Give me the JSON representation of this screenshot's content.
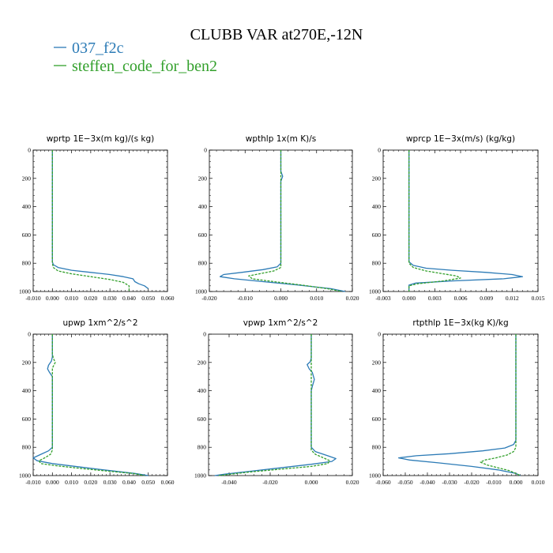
{
  "title": "CLUBB VAR at270E,-12N",
  "legend": [
    {
      "label": "037_f2c",
      "color": "#2c7bb6"
    },
    {
      "label": "steffen_code_for_ben2",
      "color": "#33a02c"
    }
  ],
  "chart_data": [
    {
      "type": "line",
      "title": "wprtp   1E−3x(m kg)/(s kg)",
      "xlim": [
        -0.01,
        0.06
      ],
      "xticks": [
        "-0.010",
        "0.000",
        "0.010",
        "0.020",
        "0.030",
        "0.040",
        "0.050",
        "0.060"
      ],
      "xtick_values": [
        -0.01,
        0.0,
        0.01,
        0.02,
        0.03,
        0.04,
        0.05,
        0.06
      ],
      "ylim": [
        0,
        1000
      ],
      "yticks": [
        "0",
        "200",
        "400",
        "600",
        "800",
        "1000"
      ],
      "y_inverted": true,
      "series": [
        {
          "name": "037_f2c",
          "color": "#2c7bb6",
          "dashed": false,
          "x": [
            0.0,
            0.0,
            0.0,
            0.0005,
            0.003,
            0.01,
            0.02,
            0.03,
            0.037,
            0.042,
            0.043,
            0.045,
            0.048,
            0.05
          ],
          "y": [
            0,
            400,
            790,
            810,
            830,
            850,
            865,
            880,
            895,
            910,
            930,
            945,
            960,
            980
          ]
        },
        {
          "name": "steffen_code_for_ben2",
          "color": "#33a02c",
          "dashed": true,
          "x": [
            0.0,
            0.0,
            0.0,
            0.0005,
            0.003,
            0.01,
            0.02,
            0.03,
            0.037,
            0.04,
            0.04
          ],
          "y": [
            0,
            400,
            800,
            830,
            855,
            875,
            895,
            915,
            935,
            960,
            1000
          ]
        }
      ]
    },
    {
      "type": "line",
      "title": "wpthlp   1x(m K)/s",
      "xlim": [
        -0.02,
        0.02
      ],
      "xticks": [
        "-0.020",
        "-0.010",
        "0.000",
        "0.010",
        "0.020"
      ],
      "xtick_values": [
        -0.02,
        -0.01,
        0.0,
        0.01,
        0.02
      ],
      "ylim": [
        0,
        1000
      ],
      "yticks": [
        "0",
        "200",
        "400",
        "600",
        "800",
        "1000"
      ],
      "y_inverted": true,
      "series": [
        {
          "name": "037_f2c",
          "color": "#2c7bb6",
          "dashed": false,
          "x": [
            0.0,
            0.0,
            0.0005,
            0.0,
            0.0,
            0.0,
            -0.001,
            -0.005,
            -0.011,
            -0.016,
            -0.017,
            -0.013,
            -0.005,
            0.005,
            0.014,
            0.018
          ],
          "y": [
            0,
            150,
            185,
            220,
            400,
            800,
            825,
            845,
            865,
            880,
            895,
            910,
            930,
            955,
            980,
            1000
          ]
        },
        {
          "name": "steffen_code_for_ben2",
          "color": "#33a02c",
          "dashed": true,
          "x": [
            0.0,
            0.0,
            0.0,
            0.0,
            0.0,
            -0.002,
            -0.006,
            -0.009,
            -0.008,
            -0.002,
            0.006,
            0.013,
            0.017
          ],
          "y": [
            0,
            200,
            400,
            800,
            830,
            855,
            875,
            890,
            910,
            930,
            955,
            980,
            1000
          ]
        }
      ]
    },
    {
      "type": "line",
      "title": "wprcp   1E−3x(m/s) (kg/kg)",
      "xlim": [
        -0.003,
        0.015
      ],
      "xticks": [
        "-0.003",
        "0.000",
        "0.003",
        "0.006",
        "0.009",
        "0.012",
        "0.015"
      ],
      "xtick_values": [
        -0.003,
        0.0,
        0.003,
        0.006,
        0.009,
        0.012,
        0.015
      ],
      "ylim": [
        0,
        1000
      ],
      "yticks": [
        "0",
        "200",
        "400",
        "600",
        "800",
        "1000"
      ],
      "y_inverted": true,
      "series": [
        {
          "name": "037_f2c",
          "color": "#2c7bb6",
          "dashed": false,
          "x": [
            0.0,
            0.0,
            0.0,
            0.0005,
            0.002,
            0.005,
            0.009,
            0.012,
            0.0132,
            0.011,
            0.005,
            0.0008,
            0.0,
            0.0
          ],
          "y": [
            0,
            400,
            790,
            815,
            835,
            850,
            865,
            880,
            895,
            910,
            925,
            940,
            955,
            1000
          ]
        },
        {
          "name": "steffen_code_for_ben2",
          "color": "#33a02c",
          "dashed": true,
          "x": [
            0.0,
            0.0,
            0.0,
            0.0005,
            0.002,
            0.004,
            0.0055,
            0.006,
            0.004,
            0.001,
            0.0,
            0.0
          ],
          "y": [
            0,
            400,
            800,
            830,
            855,
            875,
            890,
            905,
            925,
            945,
            960,
            1000
          ]
        }
      ]
    },
    {
      "type": "line",
      "title": "upwp   1xm^2/s^2",
      "xlim": [
        -0.01,
        0.06
      ],
      "xticks": [
        "-0.010",
        "0.000",
        "0.010",
        "0.020",
        "0.030",
        "0.040",
        "0.050",
        "0.060"
      ],
      "xtick_values": [
        -0.01,
        0.0,
        0.01,
        0.02,
        0.03,
        0.04,
        0.05,
        0.06
      ],
      "ylim": [
        0,
        1000
      ],
      "yticks": [
        "0",
        "200",
        "400",
        "600",
        "800",
        "1000"
      ],
      "y_inverted": true,
      "series": [
        {
          "name": "037_f2c",
          "color": "#2c7bb6",
          "dashed": false,
          "x": [
            0.0,
            0.0,
            -0.0005,
            -0.002,
            -0.0025,
            -0.0015,
            0.0,
            0.0,
            0.0,
            -0.002,
            -0.006,
            -0.01,
            -0.008,
            0.0,
            0.015,
            0.03,
            0.043,
            0.05
          ],
          "y": [
            0,
            160,
            190,
            220,
            245,
            270,
            300,
            400,
            800,
            825,
            850,
            875,
            895,
            915,
            940,
            965,
            985,
            1000
          ]
        },
        {
          "name": "steffen_code_for_ben2",
          "color": "#33a02c",
          "dashed": true,
          "x": [
            0.0,
            0.0,
            0.0005,
            0.0015,
            0.0,
            0.0,
            0.0,
            -0.001,
            -0.004,
            -0.007,
            -0.006,
            0.002,
            0.015,
            0.03,
            0.042,
            0.048
          ],
          "y": [
            0,
            140,
            170,
            200,
            240,
            400,
            820,
            850,
            875,
            895,
            915,
            930,
            950,
            970,
            985,
            1000
          ]
        }
      ]
    },
    {
      "type": "line",
      "title": "vpwp   1xm^2/s^2",
      "xlim": [
        -0.05,
        0.02
      ],
      "xticks": [
        "-0.040",
        "-0.020",
        "0.000",
        "0.020"
      ],
      "xtick_values": [
        -0.04,
        -0.02,
        0.0,
        0.02
      ],
      "ylim": [
        0,
        1000
      ],
      "yticks": [
        "0",
        "200",
        "400",
        "600",
        "800",
        "1000"
      ],
      "y_inverted": true,
      "series": [
        {
          "name": "037_f2c",
          "color": "#2c7bb6",
          "dashed": false,
          "x": [
            0.0,
            0.0,
            -0.0005,
            -0.002,
            -0.001,
            0.0005,
            0.0015,
            0.0005,
            0.0,
            0.0,
            0.002,
            0.008,
            0.012,
            0.01,
            0.0,
            -0.015,
            -0.03,
            -0.042,
            -0.047
          ],
          "y": [
            0,
            170,
            195,
            215,
            245,
            270,
            320,
            370,
            400,
            800,
            830,
            860,
            880,
            900,
            920,
            945,
            970,
            990,
            1000
          ]
        },
        {
          "name": "steffen_code_for_ben2",
          "color": "#33a02c",
          "dashed": true,
          "x": [
            0.0,
            0.0,
            0.0,
            0.0,
            0.002,
            0.006,
            0.009,
            0.008,
            0.0,
            -0.015,
            -0.03,
            -0.045
          ],
          "y": [
            0,
            200,
            400,
            820,
            850,
            875,
            895,
            915,
            935,
            955,
            975,
            1000
          ]
        }
      ]
    },
    {
      "type": "line",
      "title": "rtpthlp   1E−3x(kg K)/kg",
      "xlim": [
        -0.06,
        0.01
      ],
      "xticks": [
        "-0.060",
        "-0.050",
        "-0.040",
        "-0.030",
        "-0.020",
        "-0.010",
        "0.000",
        "0.010"
      ],
      "xtick_values": [
        -0.06,
        -0.05,
        -0.04,
        -0.03,
        -0.02,
        -0.01,
        0.0,
        0.01
      ],
      "ylim": [
        0,
        1000
      ],
      "yticks": [
        "0",
        "200",
        "400",
        "600",
        "800",
        "1000"
      ],
      "y_inverted": true,
      "series": [
        {
          "name": "037_f2c",
          "color": "#2c7bb6",
          "dashed": false,
          "x": [
            0.0,
            0.0,
            0.0,
            -0.001,
            -0.005,
            -0.015,
            -0.03,
            -0.045,
            -0.053,
            -0.048,
            -0.035,
            -0.02,
            -0.008,
            0.0,
            0.002
          ],
          "y": [
            0,
            400,
            750,
            780,
            805,
            825,
            845,
            860,
            875,
            890,
            910,
            935,
            960,
            985,
            1000
          ]
        },
        {
          "name": "steffen_code_for_ben2",
          "color": "#33a02c",
          "dashed": true,
          "x": [
            0.0,
            0.0,
            0.0,
            -0.001,
            -0.004,
            -0.009,
            -0.014,
            -0.016,
            -0.013,
            -0.008,
            -0.003,
            0.0,
            0.002
          ],
          "y": [
            0,
            400,
            800,
            830,
            855,
            875,
            890,
            905,
            925,
            945,
            965,
            985,
            1000
          ]
        }
      ]
    }
  ]
}
